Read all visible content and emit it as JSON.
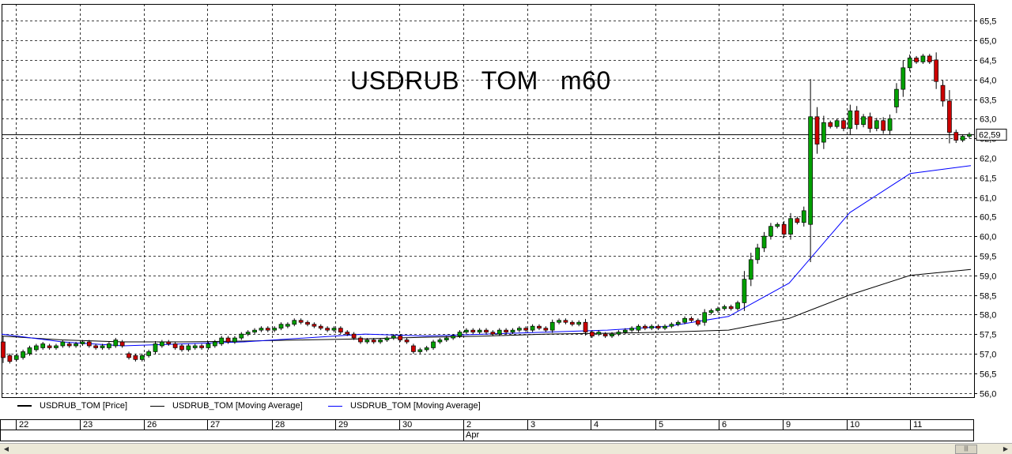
{
  "title": "USDRUB   TOM   m60",
  "last_price_label": "62,59",
  "legend": [
    {
      "label": "USDRUB_TOM [Price]",
      "color": "#000000"
    },
    {
      "label": "USDRUB_TOM [Moving Average]",
      "color": "#000000"
    },
    {
      "label": "USDRUB_TOM [Moving Average]",
      "color": "#0000ff"
    }
  ],
  "date_axis": {
    "days": [
      "22",
      "23",
      "26",
      "27",
      "28",
      "29",
      "30",
      "2",
      "3",
      "4",
      "5",
      "6",
      "9",
      "10",
      "11"
    ],
    "month_label": "Apr"
  },
  "colors": {
    "up": "#00a000",
    "down": "#cc0000",
    "ma_slow": "#000000",
    "ma_fast": "#0000ff"
  },
  "chart_data": {
    "type": "candlestick",
    "title": "USDRUB   TOM   m60",
    "ylim": [
      56.0,
      65.5
    ],
    "y_ticks": [
      "56,0",
      "56,5",
      "57,0",
      "57,5",
      "58,0",
      "58,5",
      "59,0",
      "59,5",
      "60,0",
      "60,5",
      "61,0",
      "61,5",
      "62,0",
      "62,5",
      "63,0",
      "63,5",
      "64,0",
      "64,5",
      "65,0",
      "65,5"
    ],
    "last_price": 62.59,
    "grid": true,
    "candles": [
      {
        "o": 57.3,
        "c": 56.9
      },
      {
        "o": 56.95,
        "c": 56.8
      },
      {
        "o": 56.85,
        "c": 56.95
      },
      {
        "o": 56.9,
        "c": 57.05
      },
      {
        "o": 57.0,
        "c": 57.15
      },
      {
        "o": 57.1,
        "c": 57.2
      },
      {
        "o": 57.15,
        "c": 57.25
      },
      {
        "o": 57.2,
        "c": 57.15
      },
      {
        "o": 57.15,
        "c": 57.2
      },
      {
        "o": 57.2,
        "c": 57.3
      },
      {
        "o": 57.25,
        "c": 57.2
      },
      {
        "o": 57.2,
        "c": 57.25
      },
      {
        "o": 57.25,
        "c": 57.3
      },
      {
        "o": 57.3,
        "c": 57.2
      },
      {
        "o": 57.2,
        "c": 57.15
      },
      {
        "o": 57.15,
        "c": 57.2
      },
      {
        "o": 57.15,
        "c": 57.25
      },
      {
        "o": 57.2,
        "c": 57.35
      },
      {
        "o": 57.3,
        "c": 57.2
      },
      {
        "o": 57.0,
        "c": 56.9
      },
      {
        "o": 56.95,
        "c": 56.85
      },
      {
        "o": 56.85,
        "c": 56.95
      },
      {
        "o": 56.95,
        "c": 57.05
      },
      {
        "o": 57.05,
        "c": 57.25
      },
      {
        "o": 57.2,
        "c": 57.3
      },
      {
        "o": 57.3,
        "c": 57.25
      },
      {
        "o": 57.25,
        "c": 57.15
      },
      {
        "o": 57.2,
        "c": 57.1
      },
      {
        "o": 57.1,
        "c": 57.2
      },
      {
        "o": 57.15,
        "c": 57.2
      },
      {
        "o": 57.2,
        "c": 57.15
      },
      {
        "o": 57.15,
        "c": 57.25
      },
      {
        "o": 57.2,
        "c": 57.3
      },
      {
        "o": 57.25,
        "c": 57.4
      },
      {
        "o": 57.4,
        "c": 57.3
      },
      {
        "o": 57.3,
        "c": 57.4
      },
      {
        "o": 57.4,
        "c": 57.5
      },
      {
        "o": 57.5,
        "c": 57.55
      },
      {
        "o": 57.55,
        "c": 57.6
      },
      {
        "o": 57.6,
        "c": 57.65
      },
      {
        "o": 57.65,
        "c": 57.6
      },
      {
        "o": 57.6,
        "c": 57.65
      },
      {
        "o": 57.65,
        "c": 57.75
      },
      {
        "o": 57.7,
        "c": 57.75
      },
      {
        "o": 57.75,
        "c": 57.85
      },
      {
        "o": 57.85,
        "c": 57.8
      },
      {
        "o": 57.8,
        "c": 57.75
      },
      {
        "o": 57.75,
        "c": 57.7
      },
      {
        "o": 57.7,
        "c": 57.65
      },
      {
        "o": 57.65,
        "c": 57.6
      },
      {
        "o": 57.6,
        "c": 57.65
      },
      {
        "o": 57.65,
        "c": 57.55
      },
      {
        "o": 57.55,
        "c": 57.5
      },
      {
        "o": 57.5,
        "c": 57.4
      },
      {
        "o": 57.4,
        "c": 57.3
      },
      {
        "o": 57.3,
        "c": 57.35
      },
      {
        "o": 57.35,
        "c": 57.3
      },
      {
        "o": 57.3,
        "c": 57.35
      },
      {
        "o": 57.35,
        "c": 57.4
      },
      {
        "o": 57.4,
        "c": 57.45
      },
      {
        "o": 57.45,
        "c": 57.35
      },
      {
        "o": 57.35,
        "c": 57.3
      },
      {
        "o": 57.2,
        "c": 57.05
      },
      {
        "o": 57.05,
        "c": 57.1
      },
      {
        "o": 57.1,
        "c": 57.15
      },
      {
        "o": 57.15,
        "c": 57.3
      },
      {
        "o": 57.3,
        "c": 57.35
      },
      {
        "o": 57.35,
        "c": 57.4
      },
      {
        "o": 57.4,
        "c": 57.45
      },
      {
        "o": 57.45,
        "c": 57.55
      },
      {
        "o": 57.55,
        "c": 57.6
      },
      {
        "o": 57.6,
        "c": 57.55
      },
      {
        "o": 57.55,
        "c": 57.6
      },
      {
        "o": 57.6,
        "c": 57.55
      },
      {
        "o": 57.55,
        "c": 57.5
      },
      {
        "o": 57.5,
        "c": 57.6
      },
      {
        "o": 57.6,
        "c": 57.55
      },
      {
        "o": 57.55,
        "c": 57.6
      },
      {
        "o": 57.6,
        "c": 57.65
      },
      {
        "o": 57.65,
        "c": 57.6
      },
      {
        "o": 57.6,
        "c": 57.7
      },
      {
        "o": 57.7,
        "c": 57.65
      },
      {
        "o": 57.65,
        "c": 57.6
      },
      {
        "o": 57.6,
        "c": 57.8
      },
      {
        "o": 57.8,
        "c": 57.85
      },
      {
        "o": 57.85,
        "c": 57.8
      },
      {
        "o": 57.8,
        "c": 57.75
      },
      {
        "o": 57.75,
        "c": 57.8
      },
      {
        "o": 57.8,
        "c": 57.55
      },
      {
        "o": 57.55,
        "c": 57.45
      },
      {
        "o": 57.5,
        "c": 57.55
      },
      {
        "o": 57.5,
        "c": 57.45
      },
      {
        "o": 57.45,
        "c": 57.5
      },
      {
        "o": 57.5,
        "c": 57.55
      },
      {
        "o": 57.55,
        "c": 57.6
      },
      {
        "o": 57.6,
        "c": 57.65
      },
      {
        "o": 57.6,
        "c": 57.7
      },
      {
        "o": 57.7,
        "c": 57.65
      },
      {
        "o": 57.65,
        "c": 57.7
      },
      {
        "o": 57.7,
        "c": 57.65
      },
      {
        "o": 57.65,
        "c": 57.7
      },
      {
        "o": 57.7,
        "c": 57.75
      },
      {
        "o": 57.75,
        "c": 57.8
      },
      {
        "o": 57.8,
        "c": 57.9
      },
      {
        "o": 57.9,
        "c": 57.85
      },
      {
        "o": 57.85,
        "c": 57.75
      },
      {
        "o": 57.8,
        "c": 58.05
      },
      {
        "o": 58.05,
        "c": 58.1
      },
      {
        "o": 58.1,
        "c": 58.15
      },
      {
        "o": 58.15,
        "c": 58.2
      },
      {
        "o": 58.2,
        "c": 58.15
      },
      {
        "o": 58.15,
        "c": 58.3
      },
      {
        "o": 58.3,
        "c": 58.9
      },
      {
        "o": 58.9,
        "c": 59.4
      },
      {
        "o": 59.4,
        "c": 59.7
      },
      {
        "o": 59.7,
        "c": 60.0
      },
      {
        "o": 60.0,
        "c": 60.25
      },
      {
        "o": 60.25,
        "c": 60.3
      },
      {
        "o": 60.3,
        "c": 60.05
      },
      {
        "o": 60.05,
        "c": 60.45
      },
      {
        "o": 60.45,
        "c": 60.35
      },
      {
        "o": 60.35,
        "c": 60.65
      },
      {
        "o": 60.3,
        "c": 63.05
      },
      {
        "o": 63.05,
        "c": 62.35
      },
      {
        "o": 62.4,
        "c": 62.9
      },
      {
        "o": 62.9,
        "c": 62.8
      },
      {
        "o": 62.8,
        "c": 62.95
      },
      {
        "o": 62.95,
        "c": 62.75
      },
      {
        "o": 62.75,
        "c": 63.2
      },
      {
        "o": 63.2,
        "c": 62.85
      },
      {
        "o": 62.85,
        "c": 63.05
      },
      {
        "o": 63.05,
        "c": 62.75
      },
      {
        "o": 62.75,
        "c": 62.95
      },
      {
        "o": 62.95,
        "c": 62.7
      },
      {
        "o": 62.7,
        "c": 63.0
      },
      {
        "o": 63.3,
        "c": 63.75
      },
      {
        "o": 63.75,
        "c": 64.3
      },
      {
        "o": 64.3,
        "c": 64.55
      },
      {
        "o": 64.55,
        "c": 64.45
      },
      {
        "o": 64.45,
        "c": 64.6
      },
      {
        "o": 64.6,
        "c": 64.45
      },
      {
        "o": 64.5,
        "c": 63.95
      },
      {
        "o": 63.85,
        "c": 63.45
      },
      {
        "o": 63.45,
        "c": 62.65
      },
      {
        "o": 62.65,
        "c": 62.45
      },
      {
        "o": 62.45,
        "c": 62.55
      },
      {
        "o": 62.55,
        "c": 62.6
      }
    ],
    "series": [
      {
        "values": [
          57.45,
          57.35,
          57.3,
          57.3,
          57.32,
          57.35,
          57.38,
          57.42,
          57.45,
          57.5,
          57.52,
          57.55,
          57.6,
          57.9,
          58.5,
          59.0,
          59.15
        ]
      },
      {
        "values": [
          57.5,
          57.3,
          57.2,
          57.25,
          57.3,
          57.4,
          57.5,
          57.45,
          57.5,
          57.55,
          57.6,
          57.7,
          57.95,
          58.8,
          60.6,
          61.6,
          61.8
        ]
      }
    ]
  }
}
